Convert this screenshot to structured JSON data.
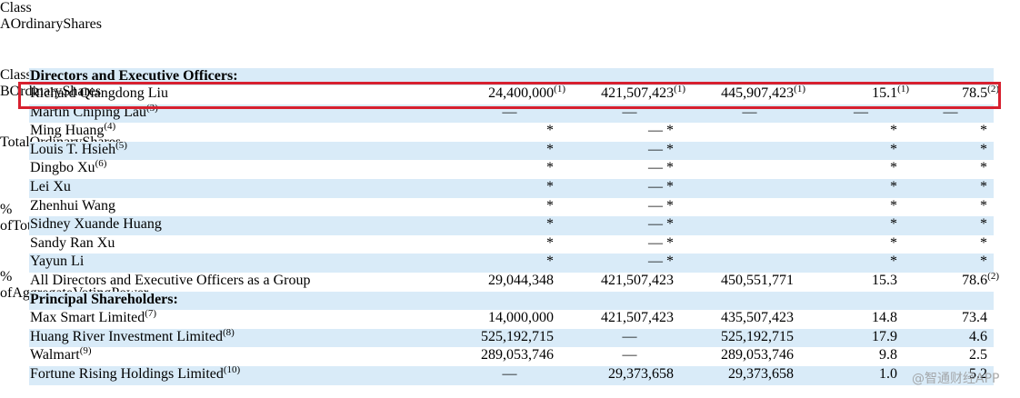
{
  "table": {
    "columns": [
      [
        "Class A",
        "Ordinary",
        "Shares"
      ],
      [
        "Class B",
        "Ordinary",
        "Shares"
      ],
      [
        "Total",
        "Ordinary",
        "Shares"
      ],
      [
        "% of",
        "Total",
        "Ordinary",
        "Shares"
      ],
      [
        "% of",
        "Aggregate",
        "Voting",
        "Power"
      ]
    ],
    "rows": [
      {
        "section": "Directors and Executive Officers:"
      },
      {
        "name": "Richard Qiangdong Liu",
        "cells": [
          {
            "text": "24,400,000",
            "sup": "(1)"
          },
          {
            "text": "421,507,423",
            "sup": "(1)"
          },
          {
            "text": "445,907,423",
            "sup": "(1)"
          },
          {
            "text": "15.1",
            "sup": "(1)"
          },
          {
            "text": "78.5",
            "sup": "(2)"
          }
        ]
      },
      {
        "name": "Martin Chiping Lau",
        "sup": "(3)",
        "cells": [
          "—",
          "—",
          "—",
          "—",
          "—"
        ]
      },
      {
        "name": "Ming Huang",
        "sup": "(4)",
        "cells": [
          "*",
          "— *",
          null,
          "*",
          "*"
        ]
      },
      {
        "name": "Louis T. Hsieh",
        "sup": "(5)",
        "cells": [
          "*",
          "— *",
          null,
          "*",
          "*"
        ]
      },
      {
        "name": "Dingbo Xu",
        "sup": "(6)",
        "cells": [
          "*",
          "— *",
          null,
          "*",
          "*"
        ]
      },
      {
        "name": "Lei Xu",
        "cells": [
          "*",
          "— *",
          null,
          "*",
          "*"
        ]
      },
      {
        "name": "Zhenhui Wang",
        "cells": [
          "*",
          "— *",
          null,
          "*",
          "*"
        ]
      },
      {
        "name": "Sidney Xuande Huang",
        "cells": [
          "*",
          "— *",
          null,
          "*",
          "*"
        ]
      },
      {
        "name": "Sandy Ran Xu",
        "cells": [
          "*",
          "— *",
          null,
          "*",
          "*"
        ]
      },
      {
        "name": "Yayun Li",
        "cells": [
          "*",
          "— *",
          null,
          "*",
          "*"
        ]
      },
      {
        "name": "All Directors and Executive Officers as a Group",
        "cells": [
          "29,044,348",
          "421,507,423",
          "450,551,771",
          "15.3",
          {
            "text": "78.6",
            "sup": "(2)"
          }
        ]
      },
      {
        "section": "Principal Shareholders:"
      },
      {
        "name": "Max Smart Limited",
        "sup": "(7)",
        "cells": [
          "14,000,000",
          "421,507,423",
          "435,507,423",
          "14.8",
          "73.4"
        ]
      },
      {
        "name": "Huang River Investment Limited",
        "sup": "(8)",
        "cells": [
          "525,192,715",
          "—",
          "525,192,715",
          "17.9",
          "4.6"
        ]
      },
      {
        "name": "Walmart",
        "sup": "(9)",
        "cells": [
          "289,053,746",
          "—",
          "289,053,746",
          "9.8",
          "2.5"
        ]
      },
      {
        "name": "Fortune Rising Holdings Limited",
        "sup": "(10)",
        "cells": [
          "—",
          "29,373,658",
          "29,373,658",
          "1.0",
          "5.2"
        ]
      }
    ]
  },
  "watermark": "@智通财经APP"
}
